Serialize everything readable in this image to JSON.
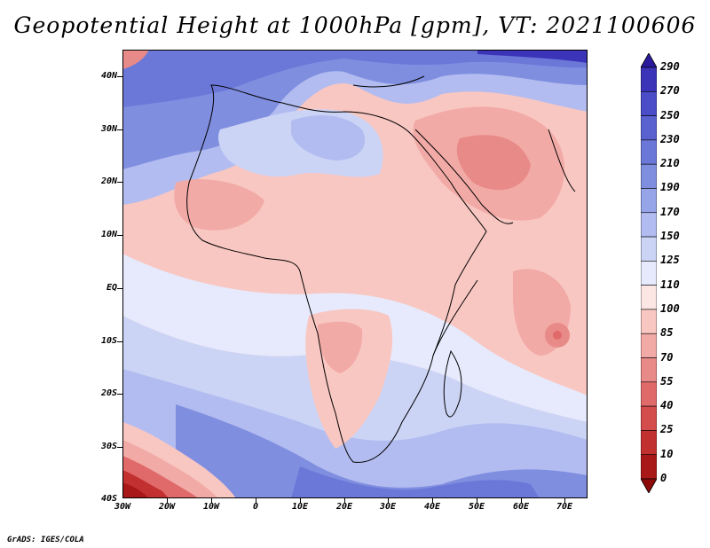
{
  "title": "Geopotential Height at 1000hPa [gpm], VT: 2021100606",
  "credit": "GrADS: IGES/COLA",
  "map": {
    "lat_labels": [
      "40N",
      "30N",
      "20N",
      "10N",
      "EQ",
      "10S",
      "20S",
      "30S",
      "40S"
    ],
    "lon_labels": [
      "30W",
      "20W",
      "10W",
      "0",
      "10E",
      "20E",
      "30E",
      "40E",
      "50E",
      "60E",
      "70E"
    ]
  },
  "colorbar": {
    "levels": [
      "290",
      "270",
      "250",
      "230",
      "210",
      "190",
      "170",
      "150",
      "125",
      "110",
      "100",
      "85",
      "70",
      "55",
      "40",
      "25",
      "10",
      "0"
    ],
    "colors": [
      "#2b1a9c",
      "#3b33b8",
      "#4a4cc8",
      "#5a62d0",
      "#6c78d8",
      "#808ee0",
      "#96a4e8",
      "#b2bcf0",
      "#ccd4f6",
      "#e6eafc",
      "#fbe6e4",
      "#f9c7c2",
      "#f2aaa6",
      "#e88a88",
      "#e06a6a",
      "#d44c4c",
      "#c23030",
      "#a81818",
      "#8c0a0a"
    ]
  }
}
